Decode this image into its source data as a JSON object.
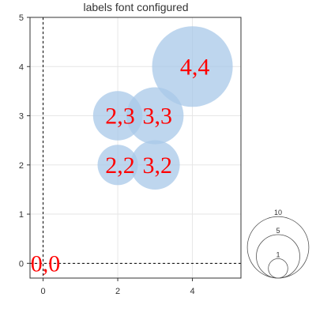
{
  "chart_data": {
    "type": "scatter",
    "title": "labels font configured",
    "xlabel": "",
    "ylabel": "",
    "xlim": [
      -0.35,
      5.3
    ],
    "ylim": [
      -0.3,
      5
    ],
    "x_ticks": [
      0,
      2,
      4
    ],
    "y_ticks": [
      0,
      1,
      2,
      3,
      4,
      5
    ],
    "grid": true,
    "zero_lines": true,
    "series": [
      {
        "points": [
          {
            "x": 0,
            "y": 0,
            "size": 0,
            "label": "0,0"
          },
          {
            "x": 2,
            "y": 2,
            "size": 2,
            "label": "2,2"
          },
          {
            "x": 3,
            "y": 2,
            "size": 3,
            "label": "3,2"
          },
          {
            "x": 2,
            "y": 3,
            "size": 3,
            "label": "2,3"
          },
          {
            "x": 3,
            "y": 3,
            "size": 4,
            "label": "3,3"
          },
          {
            "x": 4,
            "y": 4,
            "size": 8,
            "label": "4,4"
          }
        ]
      }
    ],
    "size_legend": {
      "position": "bottom-right",
      "values": [
        1,
        5,
        10
      ]
    },
    "colors": {
      "bubble_fill": "#a8c8e8",
      "label_text": "#ff0000",
      "axis": "#333333",
      "grid": "#e6e6e6",
      "zero_line": "#000000"
    }
  }
}
